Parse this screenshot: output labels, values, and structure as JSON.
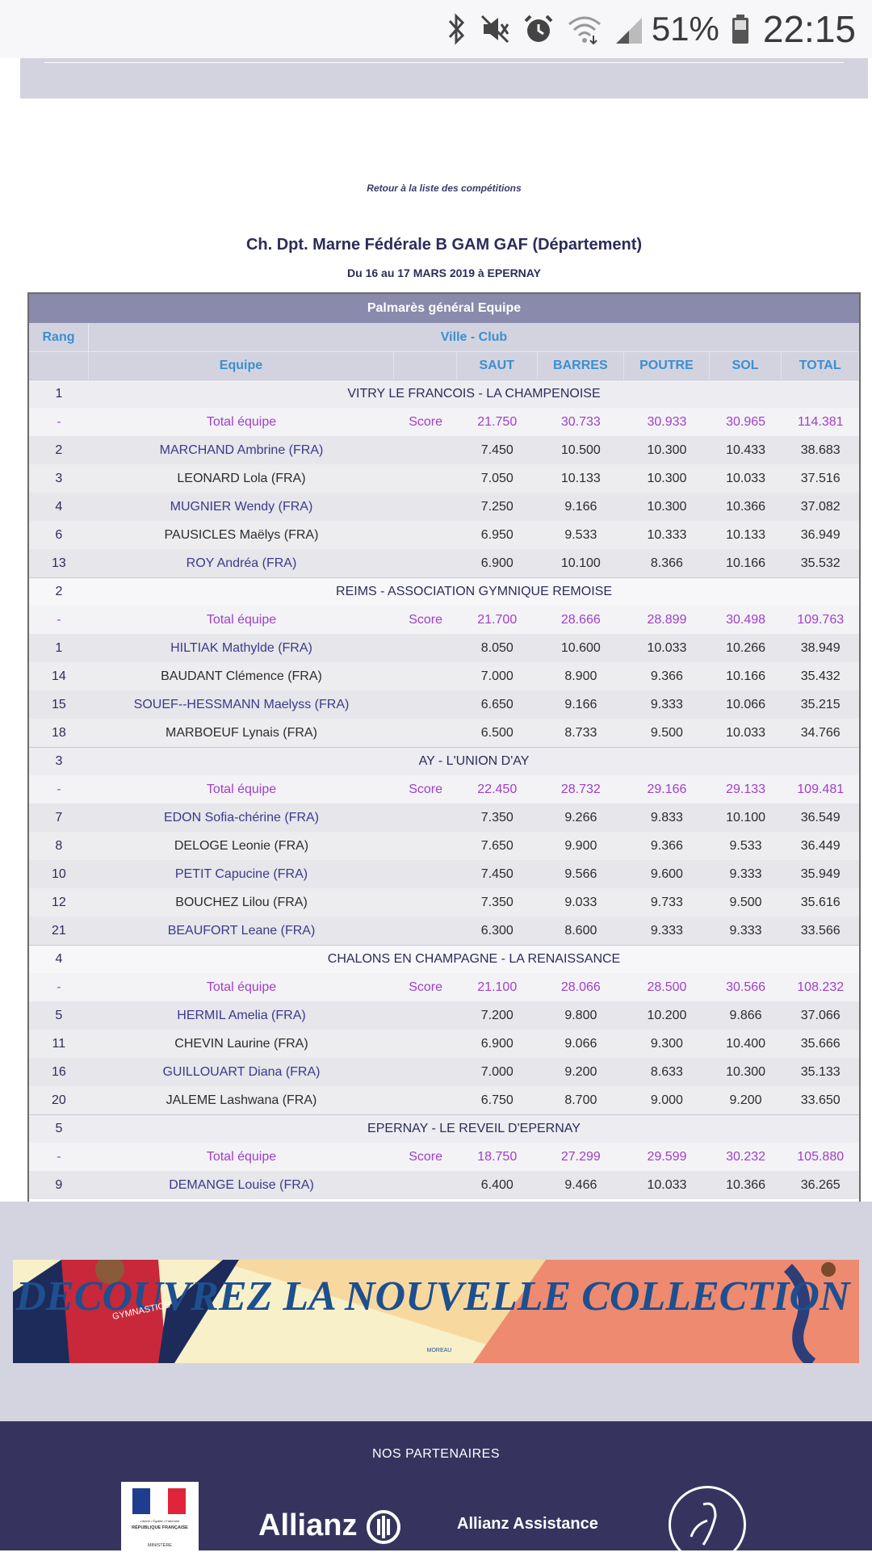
{
  "status_bar": {
    "battery": "51%",
    "time": "22:15"
  },
  "back_link": "Retour à la liste des compétitions",
  "competition": {
    "title": "Ch. Dpt. Marne Fédérale B GAM GAF (Département)",
    "subtitle": "Du 16 au 17 MARS 2019 à EPERNAY"
  },
  "table": {
    "title": "Palmarès général Equipe",
    "head1": {
      "rang": "Rang",
      "club": "Ville - Club"
    },
    "head2": {
      "equipe": "Equipe",
      "saut": "SAUT",
      "barres": "BARRES",
      "poutre": "POUTRE",
      "sol": "SOL",
      "total": "TOTAL"
    },
    "teams": [
      {
        "rank": "1",
        "club": "VITRY LE FRANCOIS - LA CHAMPENOISE",
        "total": {
          "rank": "-",
          "label": "Total équipe",
          "score": "Score",
          "saut": "21.750",
          "barres": "30.733",
          "poutre": "30.933",
          "sol": "30.965",
          "total": "114.381"
        },
        "athletes": [
          {
            "rank": "2",
            "name": "MARCHAND Ambrine (FRA)",
            "saut": "7.450",
            "barres": "10.500",
            "poutre": "10.300",
            "sol": "10.433",
            "total": "38.683"
          },
          {
            "rank": "3",
            "name": "LEONARD Lola (FRA)",
            "saut": "7.050",
            "barres": "10.133",
            "poutre": "10.300",
            "sol": "10.033",
            "total": "37.516"
          },
          {
            "rank": "4",
            "name": "MUGNIER Wendy (FRA)",
            "saut": "7.250",
            "barres": "9.166",
            "poutre": "10.300",
            "sol": "10.366",
            "total": "37.082"
          },
          {
            "rank": "6",
            "name": "PAUSICLES Maëlys (FRA)",
            "saut": "6.950",
            "barres": "9.533",
            "poutre": "10.333",
            "sol": "10.133",
            "total": "36.949"
          },
          {
            "rank": "13",
            "name": "ROY Andréa (FRA)",
            "saut": "6.900",
            "barres": "10.100",
            "poutre": "8.366",
            "sol": "10.166",
            "total": "35.532"
          }
        ]
      },
      {
        "rank": "2",
        "club": "REIMS - ASSOCIATION GYMNIQUE REMOISE",
        "total": {
          "rank": "-",
          "label": "Total équipe",
          "score": "Score",
          "saut": "21.700",
          "barres": "28.666",
          "poutre": "28.899",
          "sol": "30.498",
          "total": "109.763"
        },
        "athletes": [
          {
            "rank": "1",
            "name": "HILTIAK Mathylde (FRA)",
            "saut": "8.050",
            "barres": "10.600",
            "poutre": "10.033",
            "sol": "10.266",
            "total": "38.949"
          },
          {
            "rank": "14",
            "name": "BAUDANT Clémence (FRA)",
            "saut": "7.000",
            "barres": "8.900",
            "poutre": "9.366",
            "sol": "10.166",
            "total": "35.432"
          },
          {
            "rank": "15",
            "name": "SOUEF--HESSMANN Maelyss (FRA)",
            "saut": "6.650",
            "barres": "9.166",
            "poutre": "9.333",
            "sol": "10.066",
            "total": "35.215"
          },
          {
            "rank": "18",
            "name": "MARBOEUF Lynais (FRA)",
            "saut": "6.500",
            "barres": "8.733",
            "poutre": "9.500",
            "sol": "10.033",
            "total": "34.766"
          }
        ]
      },
      {
        "rank": "3",
        "club": "AY - L'UNION D'AY",
        "total": {
          "rank": "-",
          "label": "Total équipe",
          "score": "Score",
          "saut": "22.450",
          "barres": "28.732",
          "poutre": "29.166",
          "sol": "29.133",
          "total": "109.481"
        },
        "athletes": [
          {
            "rank": "7",
            "name": "EDON Sofia-chérine (FRA)",
            "saut": "7.350",
            "barres": "9.266",
            "poutre": "9.833",
            "sol": "10.100",
            "total": "36.549"
          },
          {
            "rank": "8",
            "name": "DELOGE Leonie (FRA)",
            "saut": "7.650",
            "barres": "9.900",
            "poutre": "9.366",
            "sol": "9.533",
            "total": "36.449"
          },
          {
            "rank": "10",
            "name": "PETIT Capucine (FRA)",
            "saut": "7.450",
            "barres": "9.566",
            "poutre": "9.600",
            "sol": "9.333",
            "total": "35.949"
          },
          {
            "rank": "12",
            "name": "BOUCHEZ Lilou (FRA)",
            "saut": "7.350",
            "barres": "9.033",
            "poutre": "9.733",
            "sol": "9.500",
            "total": "35.616"
          },
          {
            "rank": "21",
            "name": "BEAUFORT Leane (FRA)",
            "saut": "6.300",
            "barres": "8.600",
            "poutre": "9.333",
            "sol": "9.333",
            "total": "33.566"
          }
        ]
      },
      {
        "rank": "4",
        "club": "CHALONS EN CHAMPAGNE - LA RENAISSANCE",
        "total": {
          "rank": "-",
          "label": "Total équipe",
          "score": "Score",
          "saut": "21.100",
          "barres": "28.066",
          "poutre": "28.500",
          "sol": "30.566",
          "total": "108.232"
        },
        "athletes": [
          {
            "rank": "5",
            "name": "HERMIL Amelia (FRA)",
            "saut": "7.200",
            "barres": "9.800",
            "poutre": "10.200",
            "sol": "9.866",
            "total": "37.066"
          },
          {
            "rank": "11",
            "name": "CHEVIN Laurine (FRA)",
            "saut": "6.900",
            "barres": "9.066",
            "poutre": "9.300",
            "sol": "10.400",
            "total": "35.666"
          },
          {
            "rank": "16",
            "name": "GUILLOUART Diana (FRA)",
            "saut": "7.000",
            "barres": "9.200",
            "poutre": "8.633",
            "sol": "10.300",
            "total": "35.133"
          },
          {
            "rank": "20",
            "name": "JALEME Lashwana (FRA)",
            "saut": "6.750",
            "barres": "8.700",
            "poutre": "9.000",
            "sol": "9.200",
            "total": "33.650"
          }
        ]
      },
      {
        "rank": "5",
        "club": "EPERNAY - LE REVEIL D'EPERNAY",
        "total": {
          "rank": "-",
          "label": "Total équipe",
          "score": "Score",
          "saut": "18.750",
          "barres": "27.299",
          "poutre": "29.599",
          "sol": "30.232",
          "total": "105.880"
        },
        "athletes": [
          {
            "rank": "9",
            "name": "DEMANGE Louise (FRA)",
            "saut": "6.400",
            "barres": "9.466",
            "poutre": "10.033",
            "sol": "10.366",
            "total": "36.265"
          }
        ]
      }
    ]
  },
  "banner": {
    "text": "DECOUVREZ LA NOUVELLE COLLECTION",
    "brand": "MOREAU",
    "shirt_text": "GYMNASTICS"
  },
  "footer": {
    "partners_title": "NOS PARTENAIRES",
    "rf_lines": [
      "Liberté • Égalité • Fraternité",
      "RÉPUBLIQUE FRANÇAISE",
      "MINISTÈRE"
    ],
    "allianz": "Allianz",
    "allianz_assistance": "Allianz Assistance"
  },
  "colors": {
    "header_purple": "#8a8aad",
    "header_blue_text": "#3a8fcf",
    "total_purple": "#a040c8",
    "footer_bg": "#36345f"
  }
}
